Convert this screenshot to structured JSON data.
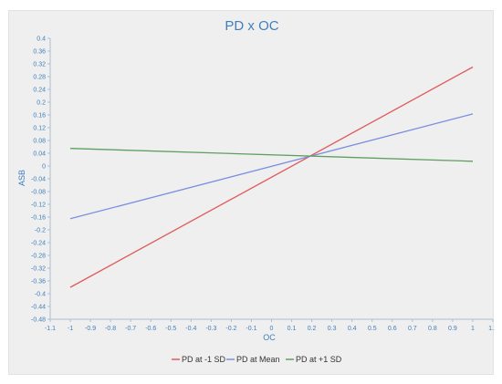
{
  "chart_data": {
    "type": "line",
    "title": "PD x OC",
    "xlabel": "OC",
    "ylabel": "ASB",
    "xlim": [
      -1.1,
      1.1
    ],
    "ylim": [
      -0.48,
      0.4
    ],
    "x_ticks": [
      "-1.1",
      "-1",
      "-0.9",
      "-0.8",
      "-0.7",
      "-0.6",
      "-0.5",
      "-0.4",
      "-0.3",
      "-0.2",
      "-0.1",
      "0",
      "0.1",
      "0.2",
      "0.3",
      "0.4",
      "0.5",
      "0.6",
      "0.7",
      "0.8",
      "0.9",
      "1",
      "1.1"
    ],
    "y_ticks": [
      "0.4",
      "0.36",
      "0.32",
      "0.28",
      "0.24",
      "0.2",
      "0.16",
      "0.12",
      "0.08",
      "0.04",
      "0",
      "-0.04",
      "-0.08",
      "-0.12",
      "-0.16",
      "-0.2",
      "-0.24",
      "-0.28",
      "-0.32",
      "-0.36",
      "-0.4",
      "-0.44",
      "-0.48"
    ],
    "grid": false,
    "legend_position": "bottom",
    "series": [
      {
        "name": "PD at -1 SD",
        "color": "#e05a5a",
        "x": [
          -1,
          1
        ],
        "y": [
          -0.38,
          0.31
        ]
      },
      {
        "name": "PD at Mean",
        "color": "#7b8ee0",
        "x": [
          -1,
          1
        ],
        "y": [
          -0.165,
          0.163
        ]
      },
      {
        "name": "PD at +1 SD",
        "color": "#5f9e5f",
        "x": [
          -1,
          1
        ],
        "y": [
          0.055,
          0.015
        ]
      }
    ]
  }
}
